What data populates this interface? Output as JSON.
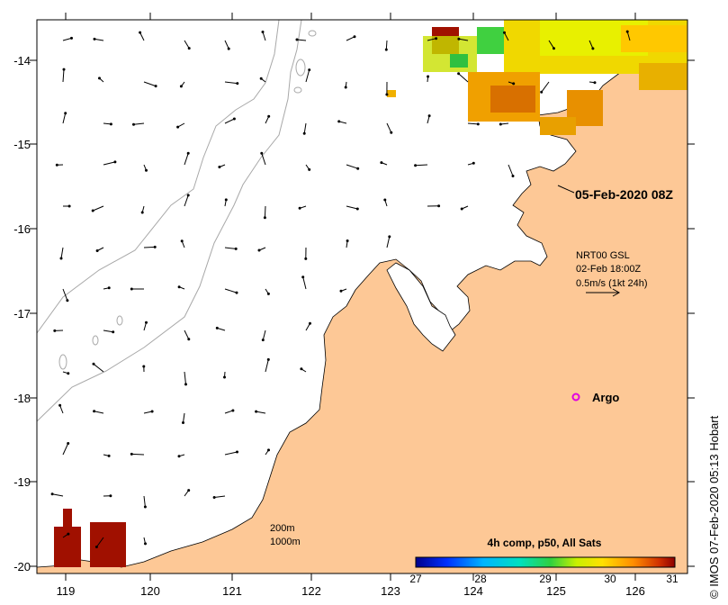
{
  "map": {
    "date_label": "05-Feb-2020 08Z",
    "current_info": {
      "line1": "NRT00 GSL",
      "line2": "02-Feb 18:00Z",
      "line3": "0.5m/s (1kt 24h)"
    },
    "argo_label": "Argo",
    "isobath_legend": {
      "line1": "200m",
      "line2": "1000m"
    },
    "colorbar": {
      "title": "4h comp, p50, All Sats",
      "ticks": [
        "27",
        "28",
        "29",
        "30",
        "31"
      ]
    },
    "x_ticks": [
      "119",
      "120",
      "121",
      "122",
      "123",
      "124",
      "125",
      "126"
    ],
    "y_ticks": [
      "-14",
      "-15",
      "-16",
      "-17",
      "-18",
      "-19",
      "-20"
    ],
    "credit": "© IMOS 07-Feb-2020 05:13 Hobart",
    "colors": {
      "land": "#fdc896",
      "argo": "#e000e0",
      "bathymetry": "#a8a8a8"
    }
  }
}
